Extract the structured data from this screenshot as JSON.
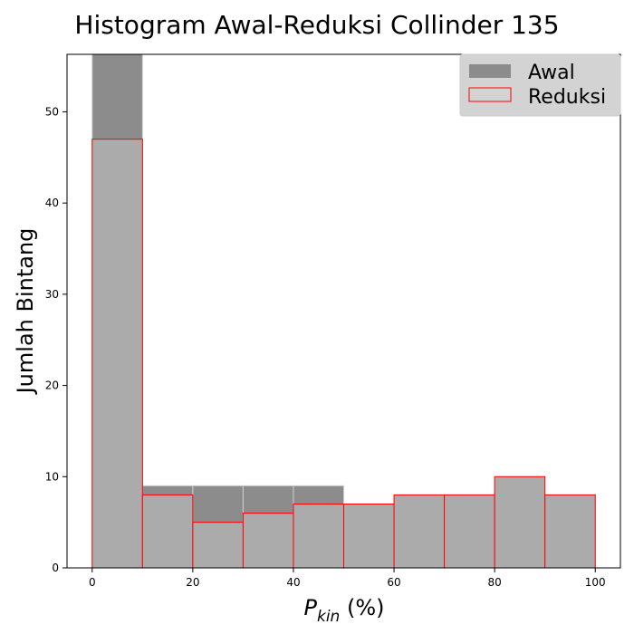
{
  "chart_data": {
    "type": "bar",
    "title": "Histogram Awal-Reduksi Collinder 135",
    "xlabel_main": "P",
    "xlabel_sub": "kin",
    "xlabel_rest": " (%)",
    "ylabel": "Jumlah Bintang",
    "bin_edges": [
      0,
      10,
      20,
      30,
      40,
      50,
      60,
      70,
      80,
      90,
      100
    ],
    "xlim": [
      -5,
      105
    ],
    "ylim": [
      0,
      56.3
    ],
    "xticks": [
      0,
      20,
      40,
      60,
      80,
      100
    ],
    "yticks": [
      0,
      10,
      20,
      30,
      40,
      50
    ],
    "grid": false,
    "legend_position": "top-right",
    "series": [
      {
        "name": "Awal",
        "values": [
          60,
          9,
          9,
          9,
          9,
          7,
          8,
          8,
          10,
          8
        ],
        "fill": "#8c8c8c",
        "edge": "#cccccc",
        "legend_fill": "#8c8c8c"
      },
      {
        "name": "Reduksi",
        "values": [
          47,
          8,
          5,
          6,
          7,
          7,
          8,
          8,
          10,
          8
        ],
        "fill": "#ababab",
        "edge": "#ff0000",
        "legend_fill": "#d3d3d3"
      }
    ]
  }
}
